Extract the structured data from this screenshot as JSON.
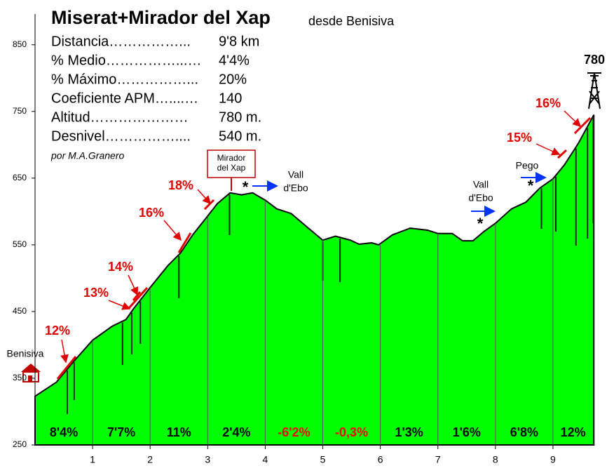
{
  "chart_data": {
    "type": "area",
    "title": "Miserat+Mirador del Xap",
    "subtitle": "desde Benisiva",
    "stats": [
      [
        "Distancia……………...",
        "9'8 km"
      ],
      [
        "% Medio……………...…",
        "4'4%"
      ],
      [
        "% Máximo……………...",
        "20%"
      ],
      [
        "Coeficiente APM…....…",
        "140"
      ],
      [
        "Altitud…………………",
        "780 m."
      ],
      [
        "Desnivel……………....",
        "540 m."
      ]
    ],
    "credit": "por M.A.Granero",
    "x": [
      0,
      0.37,
      0.67,
      1.0,
      1.34,
      1.58,
      1.71,
      2.0,
      2.31,
      2.53,
      2.74,
      2.98,
      3.17,
      3.39,
      3.59,
      3.78,
      4.0,
      4.2,
      4.45,
      4.75,
      5.0,
      5.22,
      5.48,
      5.63,
      5.85,
      5.97,
      6.21,
      6.52,
      6.82,
      7.0,
      7.25,
      7.43,
      7.61,
      7.8,
      8.01,
      8.28,
      8.53,
      8.77,
      9.0,
      9.2,
      9.44,
      9.71
    ],
    "values": [
      323,
      344,
      375,
      407,
      428,
      438,
      454,
      486,
      519,
      538,
      565,
      591,
      612,
      628,
      625,
      628,
      617,
      604,
      597,
      575,
      557,
      563,
      557,
      551,
      553,
      550,
      565,
      575,
      572,
      567,
      567,
      556,
      556,
      570,
      583,
      604,
      614,
      635,
      649,
      670,
      702,
      745
    ],
    "color": "#00ff00",
    "xlim": [
      0,
      9.7
    ],
    "ylim": [
      250,
      895
    ],
    "xticks": [
      1,
      2,
      3,
      4,
      5,
      6,
      7,
      8,
      9
    ],
    "yticks": [
      250,
      350,
      450,
      550,
      650,
      750,
      850
    ],
    "segment_labels": [
      "8'4%",
      "7'7%",
      "11%",
      "2'4%",
      "-6'2%",
      "-0,3%",
      "1'3%",
      "1'6%",
      "6'8%",
      "12%"
    ],
    "segment_label_colors": [
      "#000000",
      "#000000",
      "#000000",
      "#000000",
      "#ff0000",
      "#ff0000",
      "#000000",
      "#000000",
      "#000000",
      "#000000"
    ],
    "slope_labels": [
      "12%",
      "13%",
      "14%",
      "16%",
      "18%",
      "15%",
      "16%"
    ],
    "places": [
      [
        "Benisiva"
      ],
      [
        "Mirador",
        "del Xap"
      ],
      [
        "Vall",
        "d'Ebo"
      ],
      [
        "Vall",
        "d'Ebo"
      ],
      [
        "Pego"
      ]
    ],
    "markers": [
      "*",
      "*",
      "*"
    ],
    "summit": 780
  }
}
